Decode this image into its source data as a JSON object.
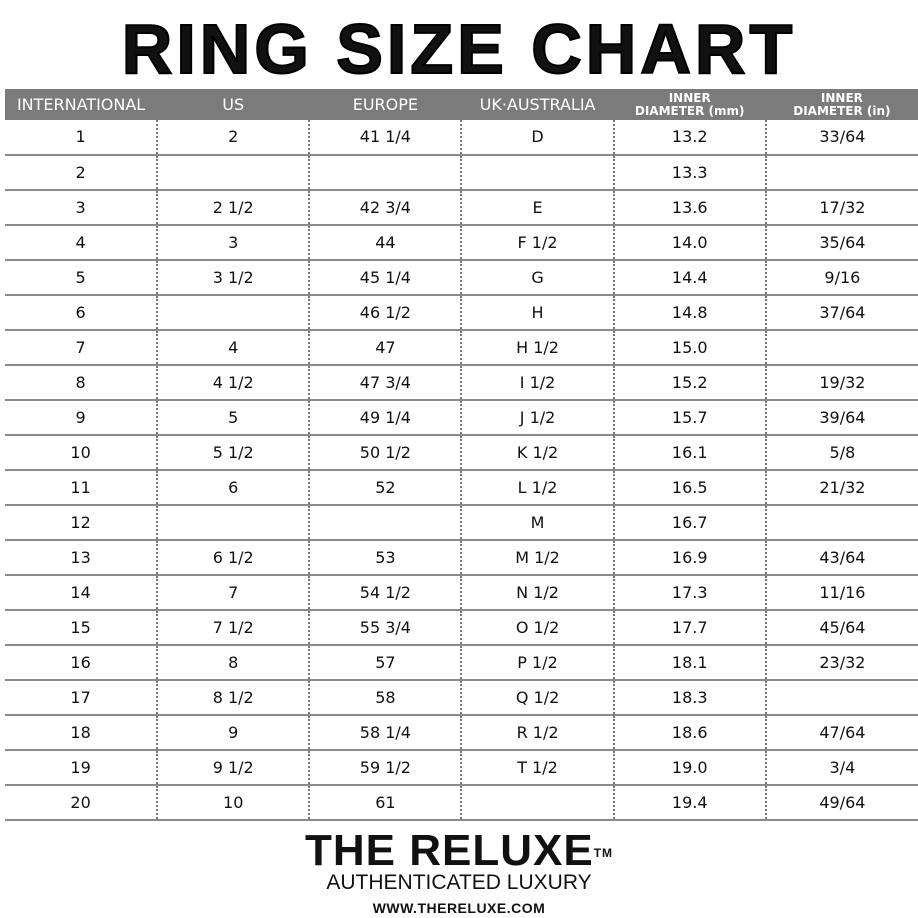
{
  "title": "RING SIZE CHART",
  "table": {
    "headers": [
      "INTERNATIONAL",
      "US",
      "EUROPE",
      "UK·AUSTRALIA",
      "INNER DIAMETER (mm)",
      "INNER DIAMETER (in)"
    ],
    "header_lines": {
      "mm": [
        "INNER",
        "DIAMETER (mm)"
      ],
      "in": [
        "INNER",
        "DIAMETER (in)"
      ]
    },
    "rows": [
      [
        "1",
        "2",
        "41 1/4",
        "D",
        "13.2",
        "33/64"
      ],
      [
        "2",
        "",
        "",
        "",
        "13.3",
        ""
      ],
      [
        "3",
        "2 1/2",
        "42 3/4",
        "E",
        "13.6",
        "17/32"
      ],
      [
        "4",
        "3",
        "44",
        "F 1/2",
        "14.0",
        "35/64"
      ],
      [
        "5",
        "3 1/2",
        "45 1/4",
        "G",
        "14.4",
        "9/16"
      ],
      [
        "6",
        "",
        "46 1/2",
        "H",
        "14.8",
        "37/64"
      ],
      [
        "7",
        "4",
        "47",
        "H 1/2",
        "15.0",
        ""
      ],
      [
        "8",
        "4 1/2",
        "47 3/4",
        "I 1/2",
        "15.2",
        "19/32"
      ],
      [
        "9",
        "5",
        "49 1/4",
        "J 1/2",
        "15.7",
        "39/64"
      ],
      [
        "10",
        "5 1/2",
        "50 1/2",
        "K 1/2",
        "16.1",
        "5/8"
      ],
      [
        "11",
        "6",
        "52",
        "L 1/2",
        "16.5",
        "21/32"
      ],
      [
        "12",
        "",
        "",
        "M",
        "16.7",
        ""
      ],
      [
        "13",
        "6 1/2",
        "53",
        "M 1/2",
        "16.9",
        "43/64"
      ],
      [
        "14",
        "7",
        "54 1/2",
        "N 1/2",
        "17.3",
        "11/16"
      ],
      [
        "15",
        "7 1/2",
        "55 3/4",
        "O 1/2",
        "17.7",
        "45/64"
      ],
      [
        "16",
        "8",
        "57",
        "P 1/2",
        "18.1",
        "23/32"
      ],
      [
        "17",
        "8 1/2",
        "58",
        "Q 1/2",
        "18.3",
        ""
      ],
      [
        "18",
        "9",
        "58 1/4",
        "R 1/2",
        "18.6",
        "47/64"
      ],
      [
        "19",
        "9 1/2",
        "59 1/2",
        "T 1/2",
        "19.0",
        "3/4"
      ],
      [
        "20",
        "10",
        "61",
        "",
        "19.4",
        "49/64"
      ]
    ]
  },
  "logo": {
    "brand": "THE RELUXE",
    "tm": "TM",
    "tagline": "AUTHENTICATED LUXURY",
    "url": "WWW.THERELUXE.COM"
  },
  "colors": {
    "header_bg": "#7b7b7b",
    "header_text": "#ffffff",
    "row_line": "#8a8a8a"
  }
}
